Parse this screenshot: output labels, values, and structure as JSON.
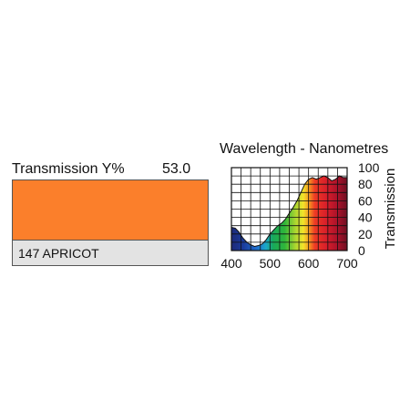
{
  "filter": {
    "transmission_label": "Transmission Y%",
    "transmission_value": "53.0",
    "name": "147 APRICOT",
    "swatch_color": "#fb7f2b",
    "name_bg_color": "#e3e3e3"
  },
  "chart_data": {
    "type": "area",
    "title": "Wavelength - Nanometres",
    "xlabel": "",
    "ylabel": "Transmission",
    "xlim": [
      400,
      700
    ],
    "ylim": [
      0,
      100
    ],
    "x_ticks": [
      "400",
      "500",
      "600",
      "700"
    ],
    "y_ticks": [
      "0",
      "20",
      "40",
      "60",
      "80",
      "100"
    ],
    "grid": true,
    "series": [
      {
        "x": [
          400,
          410,
          420,
          430,
          440,
          450,
          460,
          470,
          480,
          490,
          500,
          510,
          520,
          530,
          540,
          550,
          560,
          570,
          580,
          590,
          600,
          610,
          620,
          630,
          640,
          650,
          660,
          670,
          680,
          690,
          700
        ],
        "y": [
          28,
          27,
          22,
          15,
          10,
          7,
          5,
          6,
          8,
          13,
          20,
          25,
          30,
          33,
          38,
          45,
          52,
          60,
          70,
          80,
          86,
          88,
          86,
          88,
          90,
          88,
          84,
          86,
          90,
          88,
          88
        ]
      }
    ]
  }
}
